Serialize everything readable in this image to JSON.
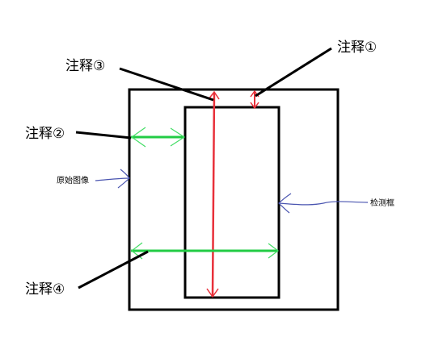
{
  "labels": {
    "note1": "注释①",
    "note2": "注释②",
    "note3": "注释③",
    "note4": "注释④",
    "original_image": "原始图像",
    "detection_box": "检测框"
  },
  "colors": {
    "frame": "#000000",
    "red_arrow": "#e8303a",
    "green_arrow": "#22cc44",
    "green_head": "#44dd66",
    "blue_pointer": "#4a55b0"
  }
}
